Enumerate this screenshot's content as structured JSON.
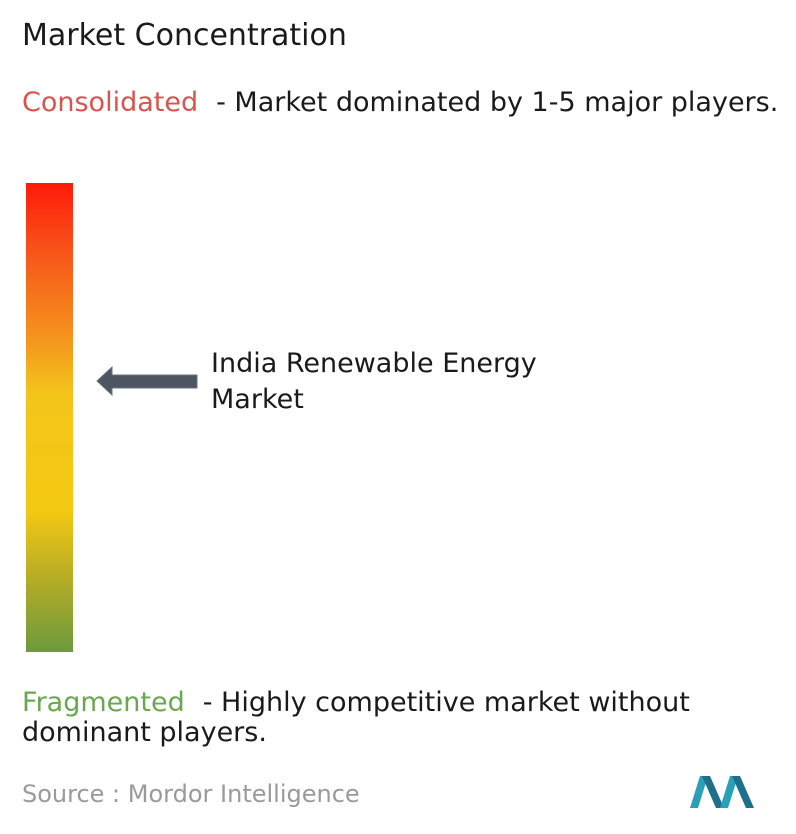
{
  "title": "Market Concentration",
  "consolidated": {
    "label": "Consolidated",
    "description": "- Market dominated by 1-5 major players."
  },
  "market": {
    "label": "India Renewable Energy Market"
  },
  "fragmented": {
    "label": "Fragmented",
    "description": "- Highly competitive market without dominant players."
  },
  "source": "Source : Mordor Intelligence"
}
